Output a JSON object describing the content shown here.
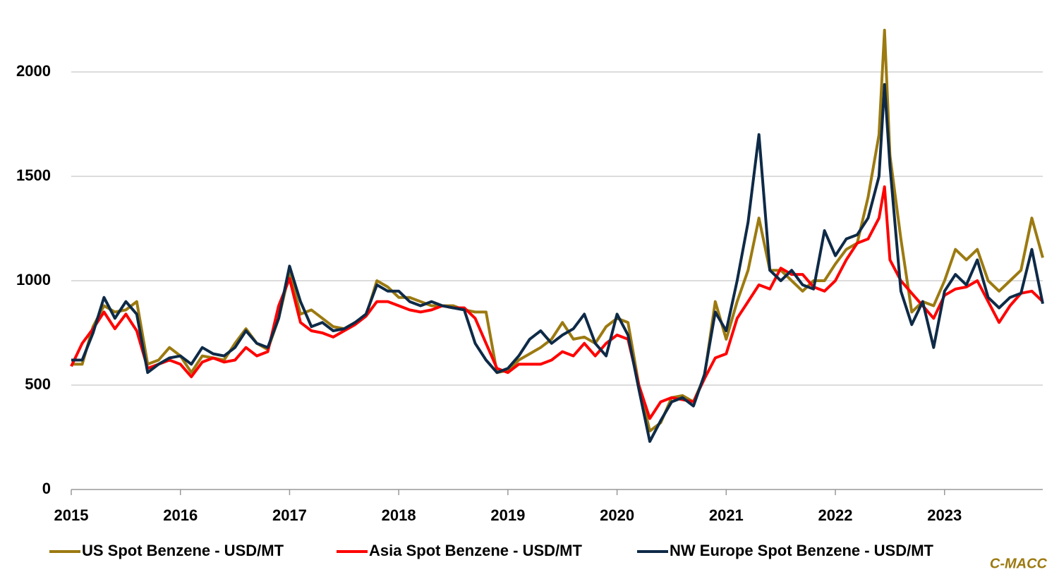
{
  "chart_data": {
    "type": "line",
    "x": [
      2015.0,
      2015.1,
      2015.2,
      2015.3,
      2015.4,
      2015.5,
      2015.6,
      2015.7,
      2015.8,
      2015.9,
      2016.0,
      2016.1,
      2016.2,
      2016.3,
      2016.4,
      2016.5,
      2016.6,
      2016.7,
      2016.8,
      2016.9,
      2017.0,
      2017.1,
      2017.2,
      2017.3,
      2017.4,
      2017.5,
      2017.6,
      2017.7,
      2017.8,
      2017.9,
      2018.0,
      2018.1,
      2018.2,
      2018.3,
      2018.4,
      2018.5,
      2018.6,
      2018.7,
      2018.8,
      2018.9,
      2019.0,
      2019.1,
      2019.2,
      2019.3,
      2019.4,
      2019.5,
      2019.6,
      2019.7,
      2019.8,
      2019.9,
      2020.0,
      2020.1,
      2020.2,
      2020.3,
      2020.4,
      2020.5,
      2020.6,
      2020.7,
      2020.8,
      2020.9,
      2021.0,
      2021.1,
      2021.2,
      2021.3,
      2021.4,
      2021.5,
      2021.6,
      2021.7,
      2021.8,
      2021.9,
      2022.0,
      2022.1,
      2022.2,
      2022.3,
      2022.4,
      2022.45,
      2022.5,
      2022.6,
      2022.7,
      2022.8,
      2022.9,
      2023.0,
      2023.1,
      2023.2,
      2023.3,
      2023.4,
      2023.5,
      2023.6,
      2023.7,
      2023.8,
      2023.9
    ],
    "series": [
      {
        "name": "US Spot Benzene - USD/MT",
        "color": "#9c7a10",
        "values": [
          600,
          600,
          780,
          880,
          850,
          860,
          900,
          600,
          620,
          680,
          640,
          560,
          640,
          630,
          620,
          700,
          770,
          700,
          670,
          820,
          1040,
          840,
          860,
          820,
          780,
          770,
          800,
          830,
          1000,
          970,
          920,
          920,
          900,
          880,
          880,
          880,
          860,
          850,
          850,
          560,
          570,
          620,
          650,
          680,
          720,
          800,
          720,
          730,
          700,
          780,
          820,
          800,
          500,
          280,
          320,
          440,
          450,
          420,
          540,
          900,
          720,
          900,
          1050,
          1300,
          1050,
          1050,
          1000,
          950,
          1000,
          1000,
          1080,
          1150,
          1180,
          1400,
          1700,
          2200,
          1600,
          1200,
          850,
          900,
          880,
          1000,
          1150,
          1100,
          1150,
          1000,
          950,
          1000,
          1050,
          1300,
          1110
        ]
      },
      {
        "name": "Asia Spot Benzene - USD/MT",
        "color": "#ff0000",
        "values": [
          590,
          700,
          770,
          850,
          770,
          840,
          760,
          580,
          600,
          620,
          600,
          540,
          610,
          630,
          610,
          620,
          680,
          640,
          660,
          880,
          1010,
          800,
          760,
          750,
          730,
          760,
          790,
          830,
          900,
          900,
          880,
          860,
          850,
          860,
          880,
          870,
          870,
          820,
          700,
          580,
          560,
          600,
          600,
          600,
          620,
          660,
          640,
          700,
          640,
          700,
          740,
          720,
          500,
          340,
          420,
          440,
          430,
          420,
          530,
          630,
          650,
          820,
          900,
          980,
          960,
          1060,
          1030,
          1030,
          970,
          950,
          1000,
          1100,
          1180,
          1200,
          1300,
          1450,
          1100,
          1000,
          940,
          880,
          820,
          930,
          960,
          970,
          1000,
          900,
          800,
          880,
          940,
          950,
          900
        ]
      },
      {
        "name": "NW Europe Spot Benzene - USD/MT",
        "color": "#0e2a47",
        "values": [
          620,
          620,
          750,
          920,
          820,
          900,
          840,
          560,
          600,
          630,
          640,
          600,
          680,
          650,
          640,
          680,
          760,
          700,
          680,
          820,
          1070,
          900,
          780,
          800,
          760,
          770,
          800,
          840,
          980,
          950,
          950,
          900,
          880,
          900,
          880,
          870,
          860,
          700,
          620,
          560,
          580,
          640,
          720,
          760,
          700,
          740,
          770,
          840,
          700,
          640,
          840,
          740,
          480,
          230,
          330,
          420,
          440,
          400,
          550,
          850,
          760,
          1000,
          1280,
          1700,
          1050,
          1000,
          1050,
          980,
          960,
          1240,
          1120,
          1200,
          1220,
          1300,
          1500,
          1940,
          1550,
          950,
          790,
          900,
          680,
          950,
          1030,
          980,
          1100,
          920,
          870,
          920,
          940,
          1150,
          890
        ]
      }
    ],
    "xlim": [
      2015,
      2023.9
    ],
    "xticks": [
      2015,
      2016,
      2017,
      2018,
      2019,
      2020,
      2021,
      2022,
      2023
    ],
    "ylim": [
      0,
      2250
    ],
    "yticks": [
      0,
      500,
      1000,
      1500,
      2000
    ],
    "grid": true,
    "legend": "bottom",
    "source": "C-MACC"
  }
}
